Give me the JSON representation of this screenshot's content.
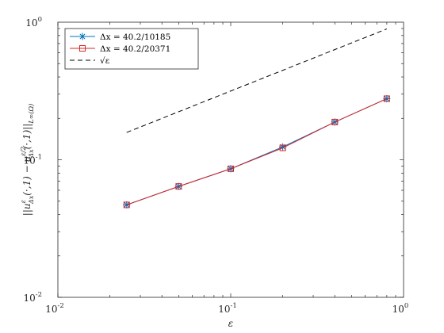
{
  "chart_data": {
    "type": "line",
    "x_scale": "log",
    "y_scale": "log",
    "xlim": [
      0.01,
      1
    ],
    "ylim": [
      0.01,
      1
    ],
    "grid": false,
    "xlabel": "ε",
    "ylabel": "||u^ε_{Δx}(·,1) − u^{ε/2}_{Δx}(·,1)||_{L^∞(Ω)}",
    "x_ticks": [
      {
        "base": "10",
        "exp": "-2",
        "value": 0.01
      },
      {
        "base": "10",
        "exp": "-1",
        "value": 0.1
      },
      {
        "base": "10",
        "exp": "0",
        "value": 1
      }
    ],
    "y_ticks": [
      {
        "base": "10",
        "exp": "-2",
        "value": 0.01
      },
      {
        "base": "10",
        "exp": "-1",
        "value": 0.1
      },
      {
        "base": "10",
        "exp": "0",
        "value": 1
      }
    ],
    "legend_position": "top-left",
    "series": [
      {
        "name": "Δx = 40.2/10185",
        "color": "#0072BD",
        "marker": "asterisk",
        "x": [
          0.025,
          0.05,
          0.1,
          0.2,
          0.4,
          0.8
        ],
        "y": [
          0.047,
          0.064,
          0.086,
          0.124,
          0.188,
          0.278
        ]
      },
      {
        "name": "Δx = 40.2/20371",
        "color": "#D62728",
        "marker": "square",
        "x": [
          0.025,
          0.05,
          0.1,
          0.2,
          0.4,
          0.8
        ],
        "y": [
          0.047,
          0.064,
          0.086,
          0.122,
          0.188,
          0.278
        ]
      },
      {
        "name": "√ε",
        "color": "#000000",
        "marker": "none",
        "line_style": "dashed",
        "x": [
          0.025,
          0.8
        ],
        "y": [
          0.158,
          0.894
        ]
      }
    ]
  }
}
